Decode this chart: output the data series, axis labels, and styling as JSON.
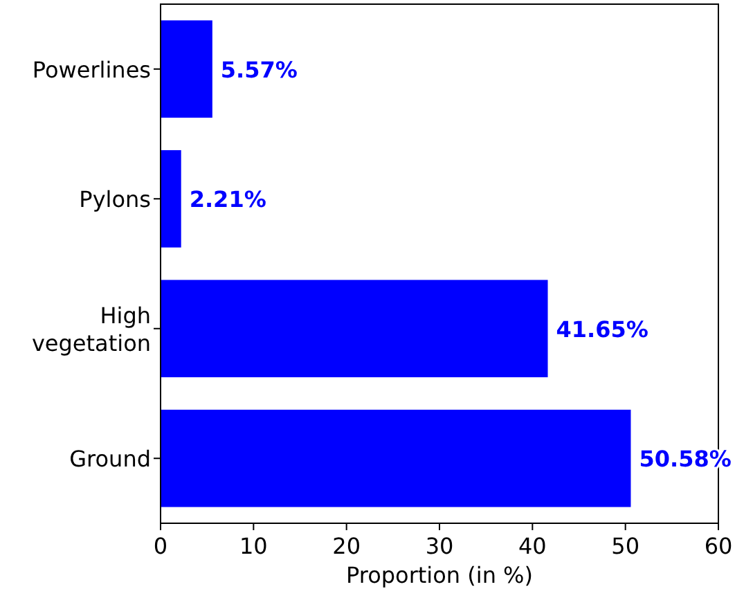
{
  "chart_data": {
    "type": "bar",
    "orientation": "horizontal",
    "xlabel": "Proportion (in %)",
    "categories": [
      "Powerlines",
      "Pylons",
      "High\nvegetation",
      "Ground"
    ],
    "values": [
      5.57,
      2.21,
      41.65,
      50.58
    ],
    "value_labels": [
      "5.57%",
      "2.21%",
      "41.65%",
      "50.58%"
    ],
    "color": "#0000ff",
    "xlim": [
      0,
      60
    ],
    "xticks": [
      0,
      10,
      20,
      30,
      40,
      50,
      60
    ],
    "grid": false
  }
}
